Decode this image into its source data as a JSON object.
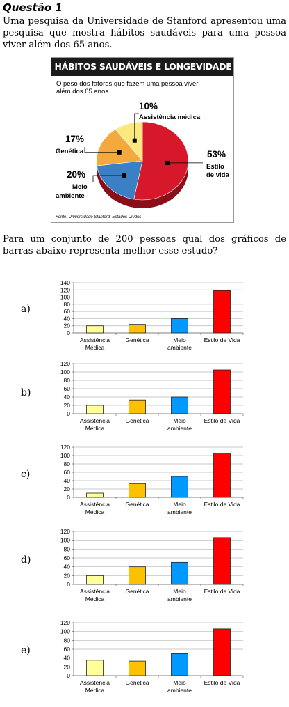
{
  "question": {
    "title": "Questão 1",
    "statement": "Uma pesquisa da Universidade de Stanford apresentou uma pesquisa que mostra hábitos saudáveis para uma pessoa viver além dos 65 anos.",
    "prompt": "Para um conjunto de 200 pessoas qual dos gráficos de barras abaixo representa melhor esse estudo?"
  },
  "infographic": {
    "header": "HÁBITOS SAUDÁVEIS E LONGEVIDADE",
    "subtitle_line1": "O peso dos fatores que fazem uma pessoa viver",
    "subtitle_line2": "além dos 65 anos",
    "source": "Fonte: Universidade Stanford, Estados Unidos",
    "colors": {
      "estilo": "#d7182a",
      "meio": "#3b7fc4",
      "genetica": "#f3a93d",
      "assistencia": "#fbe97f"
    },
    "chart_data": {
      "type": "pie",
      "slices": [
        {
          "label1": "Estilo",
          "label2": "de vida",
          "pct_label": "53%",
          "value": 53
        },
        {
          "label1": "Meio",
          "label2": "ambiente",
          "pct_label": "20%",
          "value": 20
        },
        {
          "label1": "Genética",
          "label2": "",
          "pct_label": "17%",
          "value": 17
        },
        {
          "label1": "Assistência médica",
          "label2": "",
          "pct_label": "10%",
          "value": 10
        }
      ]
    }
  },
  "options": [
    {
      "label": "a)",
      "chart_data": {
        "type": "bar",
        "categories": [
          [
            "Assistência",
            "Médica"
          ],
          [
            "Genética"
          ],
          [
            "Meio",
            "ambiente"
          ],
          [
            "Estilo de Vida"
          ]
        ],
        "values": [
          20,
          24,
          40,
          118
        ],
        "ylim": [
          0,
          140
        ],
        "yticks": [
          0,
          20,
          40,
          60,
          80,
          100,
          120,
          140
        ],
        "colors": [
          "#ffff99",
          "#ffc000",
          "#0099ff",
          "#ff0000"
        ]
      }
    },
    {
      "label": "b)",
      "chart_data": {
        "type": "bar",
        "categories": [
          [
            "Assistência",
            "Médica"
          ],
          [
            "Genética"
          ],
          [
            "Meio",
            "ambiente"
          ],
          [
            "Estilo de Vida"
          ]
        ],
        "values": [
          20,
          33,
          40,
          105
        ],
        "ylim": [
          0,
          120
        ],
        "yticks": [
          0,
          20,
          40,
          60,
          80,
          100,
          120
        ],
        "colors": [
          "#ffff99",
          "#ffc000",
          "#0099ff",
          "#ff0000"
        ]
      }
    },
    {
      "label": "c)",
      "chart_data": {
        "type": "bar",
        "categories": [
          [
            "Assistência",
            "Médica"
          ],
          [
            "Genética"
          ],
          [
            "Meio",
            "ambiente"
          ],
          [
            "Estilo de Vida"
          ]
        ],
        "values": [
          10,
          33,
          50,
          106
        ],
        "ylim": [
          0,
          120
        ],
        "yticks": [
          0,
          20,
          40,
          60,
          80,
          100,
          120
        ],
        "colors": [
          "#ffff99",
          "#ffc000",
          "#0099ff",
          "#ff0000"
        ]
      }
    },
    {
      "label": "d)",
      "chart_data": {
        "type": "bar",
        "categories": [
          [
            "Assistência",
            "Médica"
          ],
          [
            "Genética"
          ],
          [
            "Meio",
            "ambiente"
          ],
          [
            "Estilo de Vida"
          ]
        ],
        "values": [
          20,
          40,
          50,
          106
        ],
        "ylim": [
          0,
          120
        ],
        "yticks": [
          0,
          20,
          40,
          60,
          80,
          100,
          120
        ],
        "colors": [
          "#ffff99",
          "#ffc000",
          "#0099ff",
          "#ff0000"
        ]
      }
    },
    {
      "label": "e)",
      "chart_data": {
        "type": "bar",
        "categories": [
          [
            "Assistência",
            "Médica"
          ],
          [
            "Genética"
          ],
          [
            "Meio",
            "ambiente"
          ],
          [
            "Estilo de Vida"
          ]
        ],
        "values": [
          35,
          33,
          50,
          106
        ],
        "ylim": [
          0,
          120
        ],
        "yticks": [
          0,
          20,
          40,
          60,
          80,
          100,
          120
        ],
        "colors": [
          "#ffff99",
          "#ffc000",
          "#0099ff",
          "#ff0000"
        ]
      }
    }
  ]
}
